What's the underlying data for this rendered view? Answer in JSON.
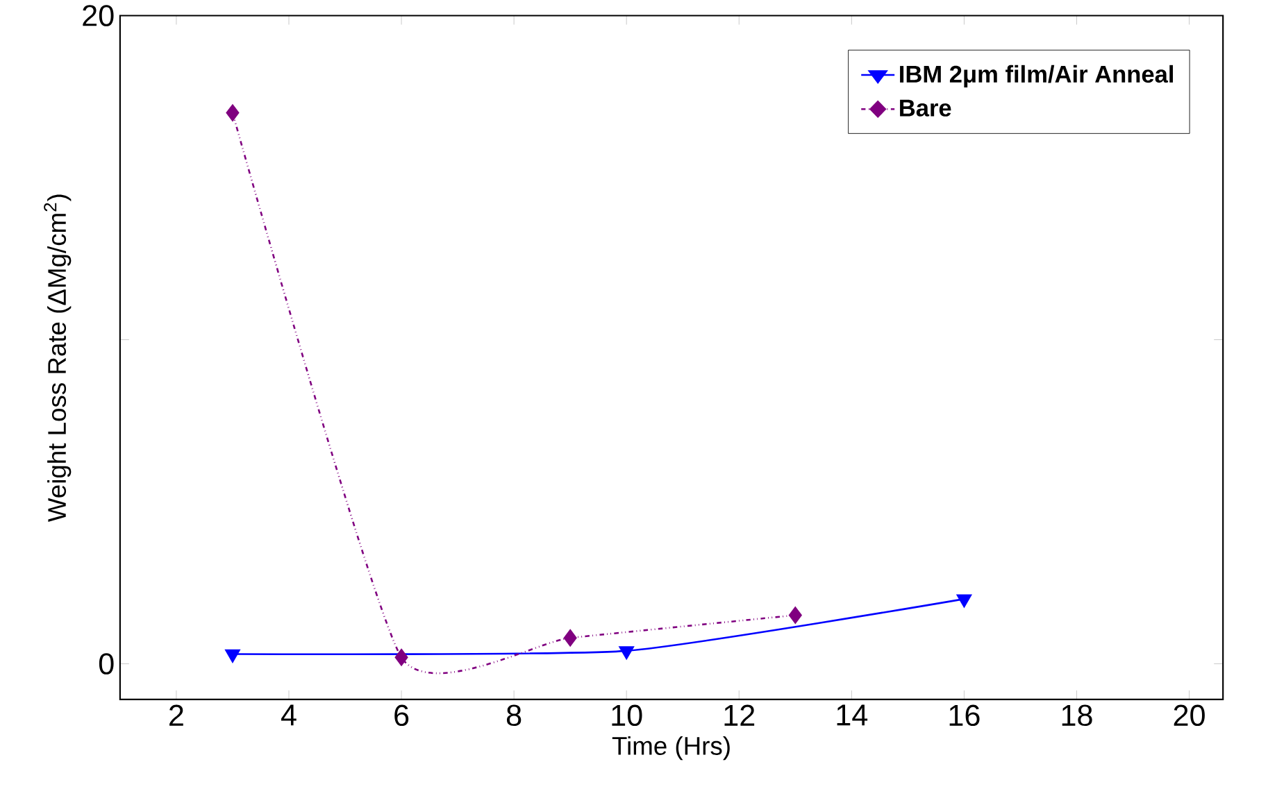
{
  "chart_data": {
    "type": "line",
    "xlabel": "Time (Hrs)",
    "ylabel": "Weight Loss Rate (ΔMg/cm$^{2}$)",
    "xlim": [
      1,
      20.6
    ],
    "ylim": [
      -1.1,
      20
    ],
    "xticks": [
      2,
      4,
      6,
      8,
      10,
      12,
      14,
      16,
      18,
      20
    ],
    "yticks": [
      0,
      {
        "value": 10,
        "label": null
      },
      20
    ],
    "legend": "top right",
    "series": [
      {
        "name": "IBM 2μm film/Air Anneal",
        "color": "#0000ff",
        "marker": "triangle",
        "line_style": "solid",
        "x": [
          3,
          10,
          16
        ],
        "values": [
          0.3,
          0.4,
          2.0
        ]
      },
      {
        "name": "Bare",
        "color": "#800080",
        "marker": "diamond",
        "line_style": "dashed",
        "x": [
          3,
          6,
          9,
          13
        ],
        "values": [
          17.0,
          0.2,
          0.8,
          1.5
        ]
      }
    ]
  }
}
